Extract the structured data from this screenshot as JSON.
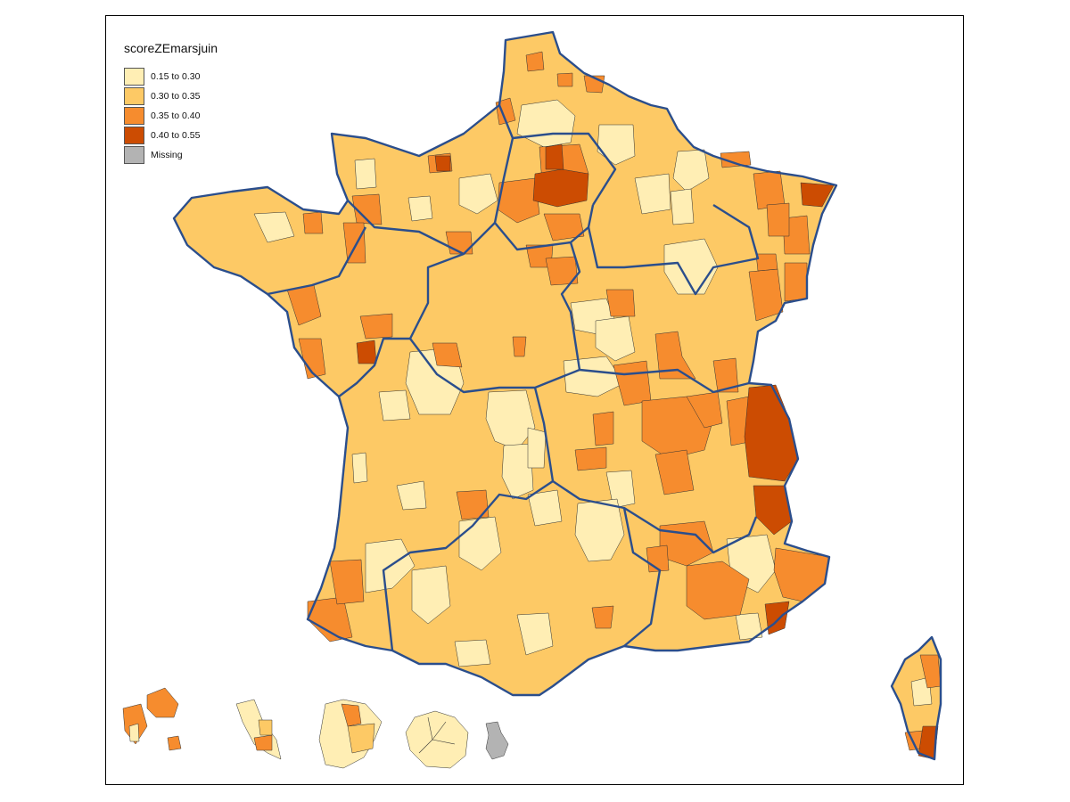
{
  "legend": {
    "title": "scoreZEmarsjuin",
    "items": [
      {
        "label": "0.15 to 0.30",
        "color": "#ffeeb4"
      },
      {
        "label": "0.30 to 0.35",
        "color": "#fdc965"
      },
      {
        "label": "0.35 to 0.40",
        "color": "#f68c2e"
      },
      {
        "label": "0.40 to 0.55",
        "color": "#cc4c02"
      },
      {
        "label": "Missing",
        "color": "#b3b3b3"
      }
    ]
  },
  "colors": {
    "region_border": "#2b4e8c",
    "zone_border": "#333333",
    "frame": "#000000"
  }
}
